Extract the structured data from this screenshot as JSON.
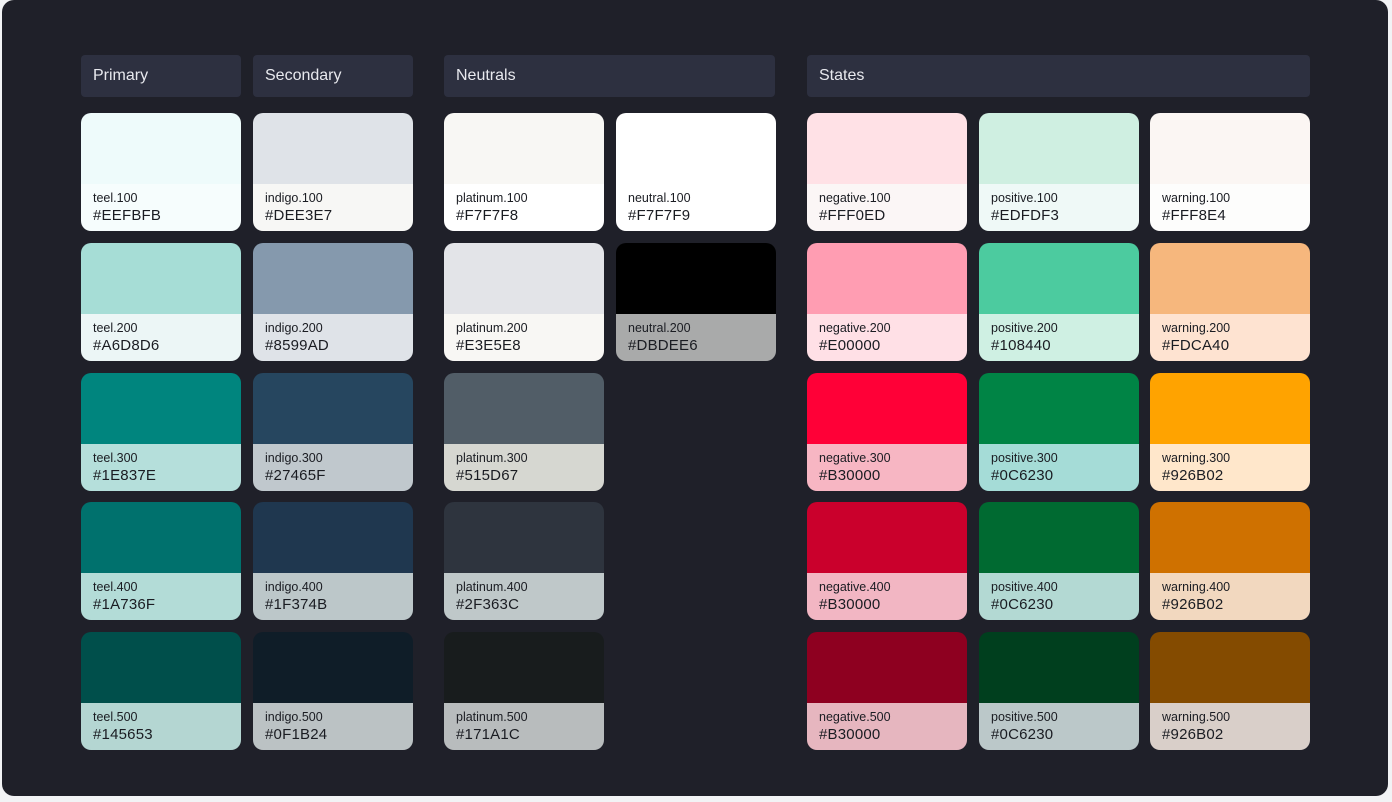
{
  "headers": {
    "primary": "Primary",
    "secondary": "Secondary",
    "neutrals": "Neutrals",
    "states": "States"
  },
  "columns": [
    {
      "group": "primary",
      "cards": [
        {
          "name": "teel.100",
          "hex": "#EEFBFB",
          "swatch": "#eefbfb",
          "footer": "#f6fdfd"
        },
        {
          "name": "teel.200",
          "hex": "#A6D8D6",
          "swatch": "#a6ddd6",
          "footer": "#ecf6f6"
        },
        {
          "name": "teel.300",
          "hex": "#1E837E",
          "swatch": "#00857e",
          "footer": "#b5dfdb"
        },
        {
          "name": "teel.400",
          "hex": "#1A736F",
          "swatch": "#00716d",
          "footer": "#b3dcd7"
        },
        {
          "name": "teel.500",
          "hex": "#145653",
          "swatch": "#004f4b",
          "footer": "#b4d6d2"
        }
      ]
    },
    {
      "group": "secondary",
      "cards": [
        {
          "name": "indigo.100",
          "hex": "#DEE3E7",
          "swatch": "#dfe3e8",
          "footer": "#f7f7f5"
        },
        {
          "name": "indigo.200",
          "hex": "#8599AD",
          "swatch": "#8599ad",
          "footer": "#dfe3e8"
        },
        {
          "name": "indigo.300",
          "hex": "#27465F",
          "swatch": "#26465f",
          "footer": "#c0c8cd"
        },
        {
          "name": "indigo.400",
          "hex": "#1F374B",
          "swatch": "#1f374f",
          "footer": "#bcc7c9"
        },
        {
          "name": "indigo.500",
          "hex": "#0F1B24",
          "swatch": "#0f1d28",
          "footer": "#bbc2c4"
        }
      ]
    },
    {
      "group": "neutrals",
      "cards": [
        {
          "name": "platinum.100",
          "hex": "#F7F7F8",
          "swatch": "#f8f7f4",
          "footer": "#ffffff"
        },
        {
          "name": "platinum.200",
          "hex": "#E3E5E8",
          "swatch": "#e3e4e8",
          "footer": "#f8f7f4"
        },
        {
          "name": "platinum.300",
          "hex": "#515D67",
          "swatch": "#515d67",
          "footer": "#d6d7d1"
        },
        {
          "name": "platinum.400",
          "hex": "#2F363C",
          "swatch": "#2e343e",
          "footer": "#bfc8c9"
        },
        {
          "name": "platinum.500",
          "hex": "#171A1C",
          "swatch": "#181c1d",
          "footer": "#b8bcbd"
        }
      ]
    },
    {
      "group": "neutrals",
      "cards": [
        {
          "name": "neutral.100",
          "hex": "#F7F7F9",
          "swatch": "#ffffff",
          "footer": "#ffffff"
        },
        {
          "name": "neutral.200",
          "hex": "#DBDEE6",
          "swatch": "#000000",
          "footer": "#a9aaaa"
        }
      ]
    },
    {
      "group": "states",
      "cards": [
        {
          "name": "negative.100",
          "hex": "#FFF0ED",
          "swatch": "#ffe1e6",
          "footer": "#fbf6f6"
        },
        {
          "name": "negative.200",
          "hex": "#E00000",
          "swatch": "#ff9db2",
          "footer": "#ffe0e6"
        },
        {
          "name": "negative.300",
          "hex": "#B30000",
          "swatch": "#ff0037",
          "footer": "#f7b6c3"
        },
        {
          "name": "negative.400",
          "hex": "#B30000",
          "swatch": "#ca002c",
          "footer": "#f2b6c3"
        },
        {
          "name": "negative.500",
          "hex": "#B30000",
          "swatch": "#8e0020",
          "footer": "#e6b6bf"
        }
      ]
    },
    {
      "group": "states",
      "cards": [
        {
          "name": "positive.100",
          "hex": "#EDFDF3",
          "swatch": "#cfefe1",
          "footer": "#eff9f7"
        },
        {
          "name": "positive.200",
          "hex": "#108440",
          "swatch": "#4ccb9f",
          "footer": "#cff0e3"
        },
        {
          "name": "positive.300",
          "hex": "#0C6230",
          "swatch": "#008445",
          "footer": "#a5dcd7"
        },
        {
          "name": "positive.400",
          "hex": "#0C6230",
          "swatch": "#006a31",
          "footer": "#b3d9d3"
        },
        {
          "name": "positive.500",
          "hex": "#0C6230",
          "swatch": "#003f1e",
          "footer": "#bbc8c9"
        }
      ]
    },
    {
      "group": "states",
      "cards": [
        {
          "name": "warning.100",
          "hex": "#FFF8E4",
          "swatch": "#fbf6f3",
          "footer": "#fdfdfc"
        },
        {
          "name": "warning.200",
          "hex": "#FDCA40",
          "swatch": "#f6b77d",
          "footer": "#fee3d1"
        },
        {
          "name": "warning.300",
          "hex": "#926B02",
          "swatch": "#ffa300",
          "footer": "#ffe7cb"
        },
        {
          "name": "warning.400",
          "hex": "#926B02",
          "swatch": "#cf7100",
          "footer": "#f2d8bf"
        },
        {
          "name": "warning.500",
          "hex": "#926B02",
          "swatch": "#844b00",
          "footer": "#d9cfc9"
        }
      ]
    }
  ]
}
